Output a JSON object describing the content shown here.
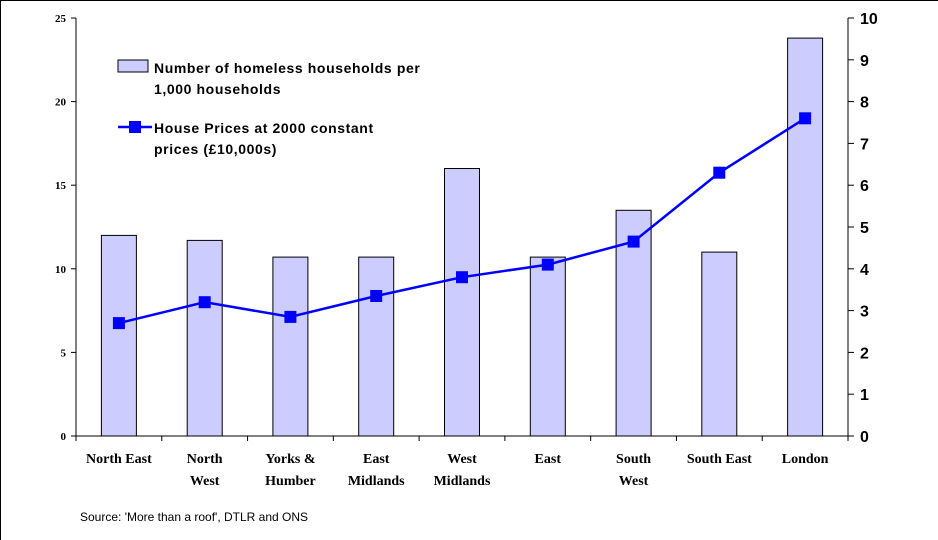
{
  "chart_data": {
    "type": "bar+line",
    "categories": [
      [
        "North East"
      ],
      [
        "North",
        "West"
      ],
      [
        "Yorks &",
        "Humber"
      ],
      [
        "East",
        "Midlands"
      ],
      [
        "West",
        "Midlands"
      ],
      [
        "East"
      ],
      [
        "South",
        "West"
      ],
      [
        "South East"
      ],
      [
        "London"
      ]
    ],
    "series": [
      {
        "name": [
          "Number of homeless households per",
          "1,000 households"
        ],
        "type": "bar",
        "axis": "left",
        "color": "#ccccff",
        "values": [
          12.0,
          11.7,
          10.7,
          10.7,
          16.0,
          10.7,
          13.5,
          11.0,
          23.8
        ]
      },
      {
        "name": [
          "House Prices at 2000 constant",
          "prices (£10,000s)"
        ],
        "type": "line",
        "axis": "right",
        "color": "#0000ff",
        "values": [
          2.7,
          3.2,
          2.85,
          3.35,
          3.8,
          4.1,
          4.65,
          6.3,
          7.6
        ]
      }
    ],
    "yleft": {
      "ylim": [
        0,
        25
      ],
      "ticks": [
        0,
        5,
        10,
        15,
        20,
        25
      ]
    },
    "yright": {
      "ylim": [
        0,
        10
      ],
      "ticks": [
        0,
        1,
        2,
        3,
        4,
        5,
        6,
        7,
        8,
        9,
        10
      ]
    },
    "legend_position": "top-left",
    "grid": false
  },
  "source": "Source: 'More than a roof', DTLR and ONS"
}
